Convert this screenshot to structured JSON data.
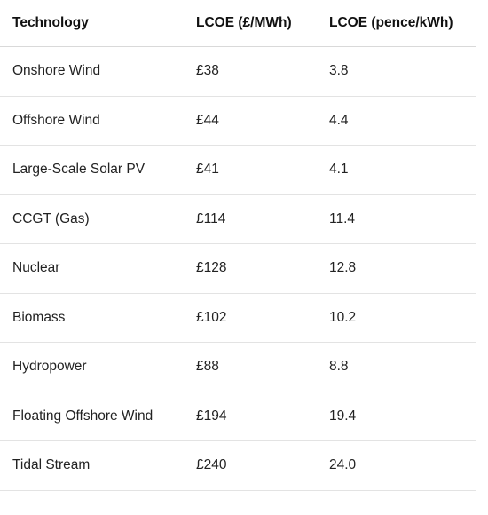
{
  "table": {
    "headers": [
      "Technology",
      "LCOE (£/MWh)",
      "LCOE (pence/kWh)"
    ],
    "rows": [
      [
        "Onshore Wind",
        "£38",
        "3.8"
      ],
      [
        "Offshore Wind",
        "£44",
        "4.4"
      ],
      [
        "Large-Scale Solar PV",
        "£41",
        "4.1"
      ],
      [
        "CCGT (Gas)",
        "£114",
        "11.4"
      ],
      [
        "Nuclear",
        "£128",
        "12.8"
      ],
      [
        "Biomass",
        "£102",
        "10.2"
      ],
      [
        "Hydropower",
        "£88",
        "8.8"
      ],
      [
        "Floating Offshore Wind",
        "£194",
        "19.4"
      ],
      [
        "Tidal Stream",
        "£240",
        "24.0"
      ]
    ]
  }
}
